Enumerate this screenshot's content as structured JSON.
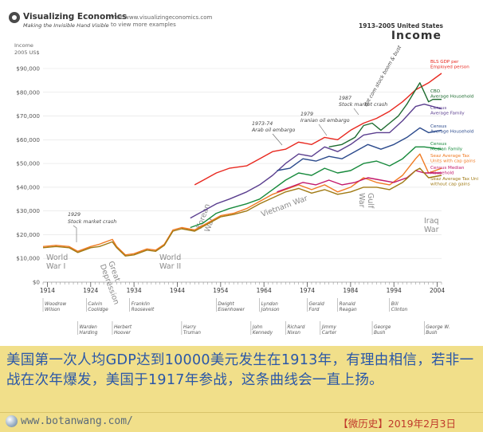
{
  "header": {
    "brand_name": "Visualizing Economics",
    "brand_tagline": "Making the Invisible Hand Visible",
    "visit_line1": "Visit www.visualizingeconomics.com",
    "visit_line2": "to view more examples",
    "title_small": "1913–2005 United States",
    "title_big": "Income"
  },
  "chart_data": {
    "type": "line",
    "ylabel": "Income",
    "yunit": "2005 US$",
    "ylim": [
      0,
      90000
    ],
    "yticks": [
      0,
      10000,
      20000,
      30000,
      40000,
      50000,
      60000,
      70000,
      80000,
      90000
    ],
    "ytick_labels": [
      "$0",
      "$10,000",
      "$20,000",
      "$30,000",
      "$40,000",
      "$50,000",
      "$60,000",
      "$70,000",
      "$80,000",
      "$90,000"
    ],
    "xlim": [
      1913,
      2005
    ],
    "xtick_labels": [
      "1914",
      "1924",
      "1934",
      "1944",
      "1954",
      "1964",
      "1974",
      "1984",
      "1994",
      "2004"
    ],
    "grid": true,
    "series": [
      {
        "name": "BLS GDP per Employed person",
        "color": "#e8281f",
        "x": [
          1948,
          1950,
          1953,
          1956,
          1960,
          1963,
          1966,
          1969,
          1972,
          1975,
          1978,
          1981,
          1984,
          1987,
          1990,
          1993,
          1996,
          1999,
          2002,
          2005
        ],
        "values": [
          41000,
          43000,
          46000,
          48000,
          49000,
          52000,
          55000,
          56000,
          59000,
          58000,
          61000,
          60000,
          64000,
          67000,
          69000,
          72000,
          76000,
          81000,
          84000,
          88000
        ]
      },
      {
        "name": "CBO Average Household",
        "color": "#1d6b2f",
        "x": [
          1979,
          1982,
          1985,
          1987,
          1989,
          1991,
          1993,
          1995,
          1997,
          1999,
          2000,
          2001,
          2002,
          2003,
          2005
        ],
        "values": [
          57000,
          58000,
          61000,
          66000,
          67000,
          64000,
          67000,
          70000,
          75000,
          81000,
          84000,
          80000,
          76000,
          77000,
          77000
        ]
      },
      {
        "name": "Census Average Family",
        "color": "#5b3f8f",
        "x": [
          1947,
          1950,
          1953,
          1956,
          1960,
          1963,
          1966,
          1969,
          1972,
          1975,
          1978,
          1981,
          1984,
          1987,
          1990,
          1993,
          1996,
          1999,
          2001,
          2005
        ],
        "values": [
          27000,
          30000,
          33000,
          35000,
          38000,
          41000,
          45000,
          50000,
          54000,
          53000,
          57000,
          55000,
          58000,
          62000,
          63000,
          63000,
          68000,
          74000,
          75000,
          73000
        ]
      },
      {
        "name": "Census Average Household",
        "color": "#2b4a8c",
        "x": [
          1967,
          1970,
          1973,
          1976,
          1979,
          1982,
          1985,
          1988,
          1991,
          1994,
          1997,
          2000,
          2002,
          2005
        ],
        "values": [
          47000,
          48000,
          52000,
          51000,
          53000,
          52000,
          55000,
          58000,
          56000,
          58000,
          61000,
          65000,
          63000,
          64000
        ]
      },
      {
        "name": "Census Median Family",
        "color": "#178a3c",
        "x": [
          1947,
          1950,
          1953,
          1956,
          1960,
          1963,
          1966,
          1969,
          1972,
          1975,
          1978,
          1981,
          1984,
          1987,
          1990,
          1993,
          1996,
          1999,
          2001,
          2005
        ],
        "values": [
          23000,
          25000,
          29000,
          31000,
          33000,
          35000,
          39000,
          43000,
          46000,
          45000,
          48000,
          46000,
          47000,
          50000,
          51000,
          49000,
          52000,
          57000,
          57000,
          56000
        ]
      },
      {
        "name": "Seaz Average Tax Units with cap gains",
        "color": "#f07a22",
        "x": [
          1913,
          1916,
          1919,
          1921,
          1924,
          1926,
          1929,
          1930,
          1932,
          1934,
          1937,
          1939,
          1941,
          1943,
          1945,
          1948,
          1951,
          1954,
          1957,
          1960,
          1963,
          1966,
          1969,
          1972,
          1975,
          1978,
          1981,
          1984,
          1987,
          1990,
          1993,
          1996,
          1999,
          2000,
          2002,
          2005
        ],
        "values": [
          15000,
          15500,
          15000,
          13000,
          15000,
          16000,
          18000,
          15000,
          11500,
          12000,
          14000,
          13500,
          16000,
          22000,
          23000,
          22000,
          25000,
          28000,
          29000,
          31000,
          34000,
          37000,
          39000,
          41000,
          39000,
          41000,
          38000,
          40000,
          44000,
          42000,
          41000,
          45000,
          52000,
          54000,
          46000,
          48000
        ]
      },
      {
        "name": "Census Median Household",
        "color": "#c2186b",
        "x": [
          1967,
          1970,
          1973,
          1976,
          1979,
          1982,
          1985,
          1988,
          1991,
          1994,
          1997,
          1999,
          2001,
          2003,
          2005
        ],
        "values": [
          38000,
          40000,
          42000,
          41000,
          43000,
          41000,
          42000,
          44000,
          43000,
          42000,
          44000,
          47000,
          46000,
          46000,
          46000
        ]
      },
      {
        "name": "Seaz Average Tax Units without cap gains",
        "color": "#a07a14",
        "x": [
          1913,
          1916,
          1919,
          1921,
          1924,
          1926,
          1929,
          1930,
          1932,
          1934,
          1937,
          1939,
          1941,
          1943,
          1945,
          1948,
          1951,
          1954,
          1957,
          1960,
          1963,
          1966,
          1969,
          1972,
          1975,
          1978,
          1981,
          1984,
          1987,
          1990,
          1993,
          1996,
          1999,
          2000,
          2002,
          2005
        ],
        "values": [
          14500,
          15000,
          14500,
          12500,
          14500,
          15000,
          17000,
          14500,
          11000,
          11500,
          13500,
          13000,
          15500,
          21500,
          22500,
          21500,
          24500,
          27500,
          28500,
          30000,
          33000,
          35500,
          38000,
          39500,
          37500,
          39000,
          37000,
          38000,
          40000,
          40000,
          39000,
          42000,
          47000,
          48000,
          44000,
          45000
        ]
      }
    ],
    "annotations": [
      {
        "text": "1929",
        "x": 1929
      },
      {
        "text": "Stock market crash",
        "x": 1929
      },
      {
        "text": "1973-74",
        "x": 1973
      },
      {
        "text": "Arab oil embargo",
        "x": 1973
      },
      {
        "text": "1979",
        "x": 1979
      },
      {
        "text": "Iranian oil embargo",
        "x": 1979
      },
      {
        "text": "1987",
        "x": 1987
      },
      {
        "text": "Stock market crash",
        "x": 1987
      },
      {
        "text": "dot com stock boom & bust",
        "x": 2000
      }
    ],
    "events": [
      {
        "label1": "World",
        "label2": "War I"
      },
      {
        "label1": "Great",
        "label2": "Depression"
      },
      {
        "label1": "World",
        "label2": "War II"
      },
      {
        "label1": "Korean",
        "label2": "War"
      },
      {
        "label1": "Vietnam War",
        "label2": ""
      },
      {
        "label1": "Gulf",
        "label2": "War"
      },
      {
        "label1": "Iraq",
        "label2": "War"
      }
    ],
    "presidents": [
      {
        "first": "Woodrow",
        "last": "Wilson",
        "x": 1913
      },
      {
        "first": "Warden",
        "last": "Harding",
        "x": 1921
      },
      {
        "first": "Calvin",
        "last": "Coolidge",
        "x": 1923
      },
      {
        "first": "Herbert",
        "last": "Hoover",
        "x": 1929
      },
      {
        "first": "Franklin",
        "last": "Roosevelt",
        "x": 1933
      },
      {
        "first": "Harry",
        "last": "Truman",
        "x": 1945
      },
      {
        "first": "Dwight",
        "last": "Eisenhower",
        "x": 1953
      },
      {
        "first": "John",
        "last": "Kennedy",
        "x": 1961
      },
      {
        "first": "Lyndon",
        "last": "Johnson",
        "x": 1963
      },
      {
        "first": "Richard",
        "last": "Nixon",
        "x": 1969
      },
      {
        "first": "Gerald",
        "last": "Ford",
        "x": 1974
      },
      {
        "first": "Jimmy",
        "last": "Carter",
        "x": 1977
      },
      {
        "first": "Ronald",
        "last": "Reagan",
        "x": 1981
      },
      {
        "first": "George",
        "last": "Bush",
        "x": 1989
      },
      {
        "first": "Bill",
        "last": "Clinton",
        "x": 1993
      },
      {
        "first": "George W.",
        "last": "Bush",
        "x": 2001
      }
    ]
  },
  "caption": "美国第一次人均GDP达到10000美元发生在1913年，有理由相信，若非一战在次年爆发，美国于1917年参战，这条曲线会一直上扬。",
  "footer": {
    "url": "www.botanwang.com/",
    "tag": "【微历史】2019年2月3日"
  },
  "colors": {
    "caption_bg": "#f1df8a",
    "caption_text": "#2a57a8",
    "footer_tag": "#c0392b"
  }
}
